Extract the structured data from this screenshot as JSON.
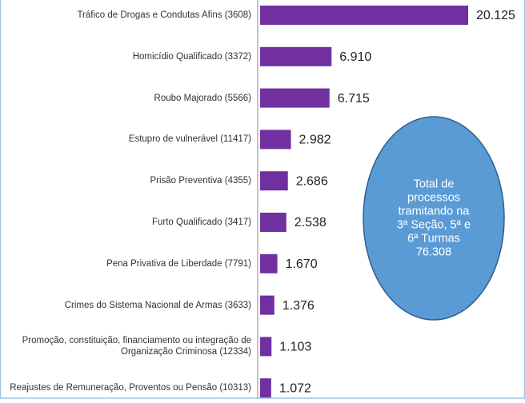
{
  "chart_data": {
    "type": "bar",
    "orientation": "horizontal",
    "color": "#7030a0",
    "categories": [
      "Tráfico de Drogas e Condutas Afins (3608)",
      "Homicídio Qualificado (3372)",
      "Roubo Majorado (5566)",
      "Estupro de vulnerável (11417)",
      "Prisão Preventiva (4355)",
      "Furto Qualificado (3417)",
      "Pena Privativa de Liberdade (7791)",
      "Crimes do Sistema Nacional de Armas (3633)",
      "Promoção, constituição, financiamento ou integração de Organização Criminosa (12334)",
      "Reajustes de Remuneração, Proventos ou Pensão (10313)"
    ],
    "values": [
      20125,
      6910,
      6715,
      2982,
      2686,
      2538,
      1670,
      1376,
      1103,
      1072
    ],
    "value_labels": [
      "20.125",
      "6.910",
      "6.715",
      "2.982",
      "2.686",
      "2.538",
      "1.670",
      "1.376",
      "1.103",
      "1.072"
    ],
    "annotation": {
      "lines": [
        "Total de",
        "processos",
        "tramitando na",
        "3ª Seção, 5ª e",
        "6ª Turmas"
      ],
      "value": 76308,
      "value_label": "76.308"
    }
  }
}
